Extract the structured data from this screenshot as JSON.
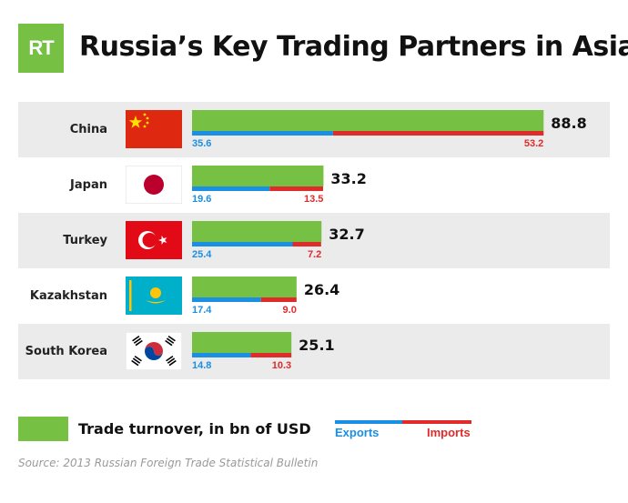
{
  "header": {
    "logo_text": "RT",
    "title": "Russia’s Key Trading Partners in Asia"
  },
  "colors": {
    "turnover": "#76c043",
    "exports": "#1a8fe3",
    "imports": "#e02b2b",
    "row_shade": "#ebebeb"
  },
  "chart_data": {
    "type": "bar",
    "categories": [
      "China",
      "Japan",
      "Turkey",
      "Kazakhstan",
      "South Korea"
    ],
    "series": [
      {
        "name": "Trade turnover, in bn of USD",
        "values": [
          88.8,
          33.2,
          32.7,
          26.4,
          25.1
        ]
      },
      {
        "name": "Exports",
        "values": [
          35.6,
          19.6,
          25.4,
          17.4,
          14.8
        ]
      },
      {
        "name": "Imports",
        "values": [
          53.2,
          13.5,
          7.2,
          9.0,
          10.3
        ]
      }
    ],
    "value_labels": {
      "turnover": [
        "88.8",
        "33.2",
        "32.7",
        "26.4",
        "25.1"
      ],
      "exports": [
        "35.6",
        "19.6",
        "25.4",
        "17.4",
        "14.8"
      ],
      "imports": [
        "53.2",
        "13.5",
        "7.2",
        "9.0",
        "10.3"
      ]
    },
    "flags": [
      "china-flag",
      "japan-flag",
      "turkey-flag",
      "kazakhstan-flag",
      "south-korea-flag"
    ],
    "orientation": "horizontal",
    "grid": false
  },
  "legend": {
    "turnover_label": "Trade turnover, in bn of USD",
    "exports_label": "Exports",
    "imports_label": "Imports"
  },
  "source": "Source: 2013 Russian Foreign Trade Statistical Bulletin"
}
